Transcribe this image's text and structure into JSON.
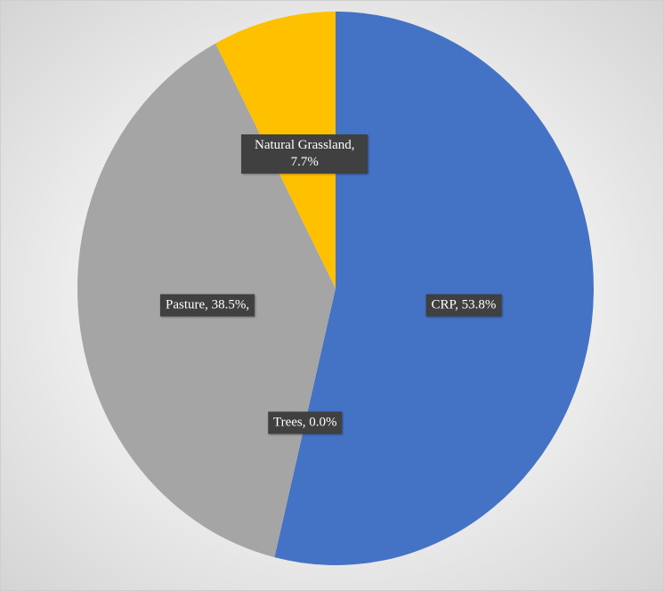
{
  "chart_data": {
    "type": "pie",
    "categories": [
      "CRP",
      "Trees",
      "Pasture",
      "Natural Grassland"
    ],
    "values": [
      53.8,
      0.0,
      38.5,
      7.7
    ],
    "value_labels": [
      "CRP, 53.8%",
      "Trees, 0.0%",
      "Pasture, 38.5%,",
      "Natural Grassland, 7.7%"
    ],
    "colors": [
      "#4472c4",
      "#ed7d31",
      "#a5a5a5",
      "#ffc000"
    ]
  }
}
